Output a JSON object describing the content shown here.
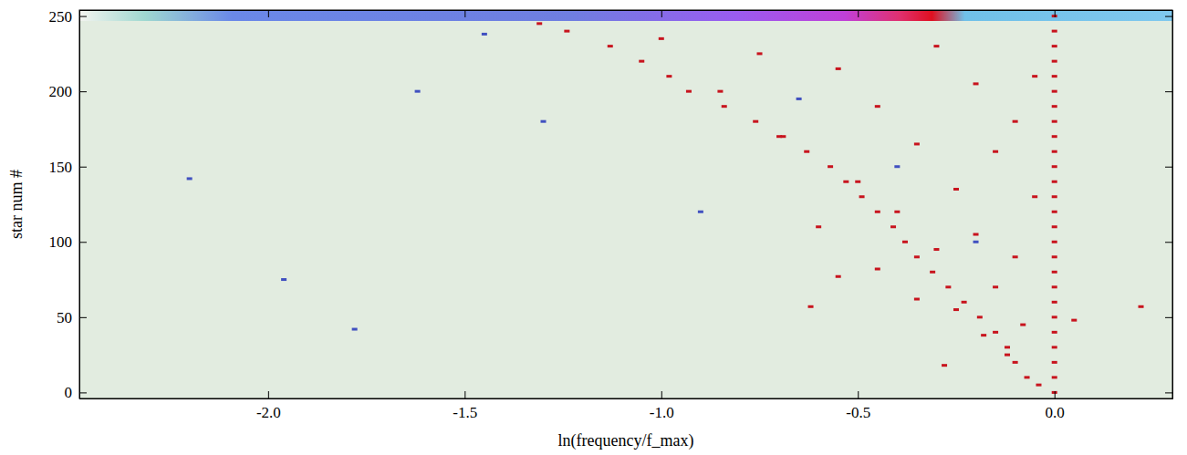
{
  "chart_data": {
    "type": "scatter",
    "x_label": "ln(frequency/f_max)",
    "y_label": "star num #",
    "xlim": [
      -2.48,
      0.3
    ],
    "ylim": [
      -4,
      254
    ],
    "xticks": [
      {
        "value": -2.0,
        "label": "-2.0"
      },
      {
        "value": -1.5,
        "label": "-1.5"
      },
      {
        "value": -1.0,
        "label": "-1.0"
      },
      {
        "value": -0.5,
        "label": "-0.5"
      },
      {
        "value": 0.0,
        "label": "0.0"
      }
    ],
    "yticks": [
      0,
      50,
      100,
      150,
      200,
      250
    ],
    "series": [
      {
        "color": "#c8141e",
        "marker": "square",
        "x": [
          -1.31,
          -1.24,
          -1.13,
          -1.05,
          -0.98,
          -0.93,
          -0.84,
          -0.76,
          -0.69,
          -0.63,
          -0.57,
          -0.53,
          -0.49,
          -0.45,
          -0.41,
          -0.38,
          -0.35,
          -0.31,
          -0.27,
          -0.23,
          -0.19,
          -0.15,
          -0.12,
          -0.1,
          -0.07,
          -0.04
        ],
        "values": [
          245,
          240,
          230,
          220,
          210,
          200,
          190,
          180,
          170,
          160,
          150,
          140,
          130,
          120,
          110,
          100,
          90,
          80,
          70,
          60,
          50,
          40,
          30,
          20,
          10,
          5
        ]
      },
      {
        "color": "#c8141e",
        "marker": "square",
        "x": [
          0,
          0,
          0,
          0,
          0,
          0,
          0,
          0,
          0,
          0,
          0,
          0,
          0,
          0,
          0,
          0,
          0,
          0,
          0,
          0,
          0,
          0,
          0,
          0,
          0,
          0
        ],
        "values": [
          0,
          10,
          20,
          30,
          40,
          50,
          60,
          70,
          80,
          90,
          100,
          110,
          120,
          130,
          140,
          150,
          160,
          170,
          180,
          190,
          200,
          210,
          220,
          230,
          240,
          250
        ]
      },
      {
        "color": "#c8141e",
        "marker": "square",
        "x": [
          -0.3,
          -0.55,
          -0.2,
          -0.45,
          -0.1,
          -0.7,
          -0.35,
          -0.15,
          -0.5,
          -0.25,
          -0.05,
          -0.4,
          -0.6,
          -0.2,
          -0.3,
          -0.1,
          -0.45,
          -0.55,
          -0.15,
          -0.35,
          -0.25,
          -0.62,
          -0.08,
          -0.18,
          -0.12,
          -0.28,
          0.22,
          0.05,
          -0.85,
          -1.0,
          -0.75,
          -0.05
        ],
        "values": [
          230,
          215,
          205,
          190,
          180,
          170,
          165,
          160,
          140,
          135,
          130,
          120,
          110,
          105,
          95,
          90,
          82,
          77,
          70,
          62,
          55,
          57,
          45,
          38,
          25,
          18,
          57,
          48,
          200,
          235,
          225,
          210
        ]
      },
      {
        "color": "#4050c0",
        "marker": "square",
        "x": [
          -1.96,
          -2.2,
          -1.78,
          -1.62,
          -1.3,
          -0.9,
          -0.4,
          -0.2,
          -1.45,
          -0.65
        ],
        "values": [
          75,
          142,
          42,
          200,
          180,
          120,
          150,
          100,
          238,
          195
        ]
      }
    ]
  }
}
